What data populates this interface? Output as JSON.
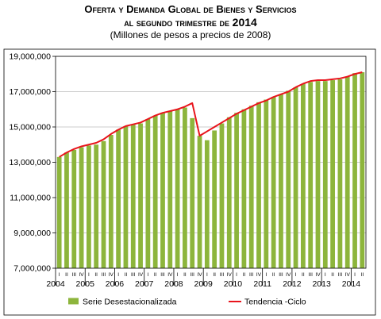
{
  "title_line1": "Oferta y Demanda Global de Bienes y Servicios",
  "title_line2_prefix": "al segundo trimestre de",
  "title_year": "2014",
  "subtitle": "(Millones de pesos a precios de 2008)",
  "chart_data": {
    "type": "bar",
    "ylim": [
      7000000,
      19000000
    ],
    "yticks": [
      7000000,
      9000000,
      11000000,
      13000000,
      15000000,
      17000000,
      19000000
    ],
    "ytick_labels": [
      "7,000,000",
      "9,000,000",
      "11,000,000",
      "13,000,000",
      "15,000,000",
      "17,000,000",
      "19,000,000"
    ],
    "quarter_labels": [
      "I",
      "II",
      "III",
      "IV"
    ],
    "year_labels": [
      "2004",
      "2005",
      "2006",
      "2007",
      "2008",
      "2009",
      "2010",
      "2011",
      "2012",
      "2013",
      "2014"
    ],
    "grid": true,
    "legend_placement": "bottom",
    "series": [
      {
        "name": "Serie Desestacionalizada",
        "type": "bar",
        "color": "#8db53c",
        "values": [
          13300000,
          13550000,
          13700000,
          13850000,
          13950000,
          14000000,
          14200000,
          14550000,
          14850000,
          15050000,
          15150000,
          15200000,
          15450000,
          15650000,
          15800000,
          15900000,
          16000000,
          16100000,
          15500000,
          14500000,
          14250000,
          14800000,
          15200000,
          15550000,
          15800000,
          16000000,
          16200000,
          16400000,
          16550000,
          16700000,
          16850000,
          17050000,
          17250000,
          17450000,
          17550000,
          17600000,
          17600000,
          17650000,
          17700000,
          17850000,
          18050000,
          18100000
        ]
      },
      {
        "name": "Tendencia -Ciclo",
        "type": "line",
        "color": "#e8141c",
        "values": [
          13300000,
          13550000,
          13750000,
          13900000,
          14000000,
          14100000,
          14300000,
          14600000,
          14850000,
          15050000,
          15150000,
          15250000,
          15450000,
          15650000,
          15800000,
          15900000,
          16000000,
          16150000,
          16350000,
          14500000,
          14750000,
          15000000,
          15250000,
          15500000,
          15750000,
          15950000,
          16150000,
          16350000,
          16500000,
          16700000,
          16850000,
          17000000,
          17250000,
          17450000,
          17600000,
          17650000,
          17650000,
          17700000,
          17750000,
          17850000,
          18000000,
          18100000
        ]
      }
    ]
  }
}
